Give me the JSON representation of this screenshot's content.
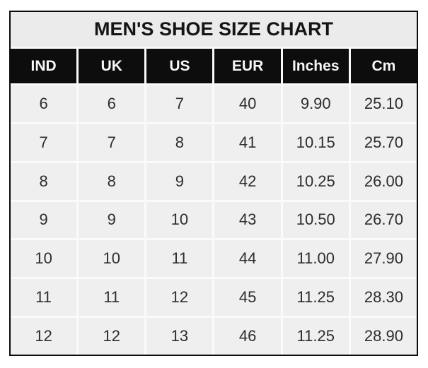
{
  "chart_data": {
    "type": "table",
    "title": "MEN'S SHOE SIZE CHART",
    "columns": [
      "IND",
      "UK",
      "US",
      "EUR",
      "Inches",
      "Cm"
    ],
    "rows": [
      [
        "6",
        "6",
        "7",
        "40",
        "9.90",
        "25.10"
      ],
      [
        "7",
        "7",
        "8",
        "41",
        "10.15",
        "25.70"
      ],
      [
        "8",
        "8",
        "9",
        "42",
        "10.25",
        "26.00"
      ],
      [
        "9",
        "9",
        "10",
        "43",
        "10.50",
        "26.70"
      ],
      [
        "10",
        "10",
        "11",
        "44",
        "11.00",
        "27.90"
      ],
      [
        "11",
        "11",
        "12",
        "45",
        "11.25",
        "28.30"
      ],
      [
        "12",
        "12",
        "13",
        "46",
        "11.25",
        "28.90"
      ]
    ],
    "layout_hints": {
      "legend": "none",
      "grid": "white gutters between cells",
      "header_style": "black background, white bold text",
      "title_style": "light gray banner, black bold text"
    }
  },
  "colors": {
    "border": "#0c0c0c",
    "header_bg": "#0d0d0d",
    "header_text": "#f7f7f7",
    "title_bg": "#ebebeb",
    "cell_bg": "#efefef",
    "cell_text": "#2d2d2d",
    "gutter": "#fafafa",
    "page_bg": "#ffffff"
  }
}
